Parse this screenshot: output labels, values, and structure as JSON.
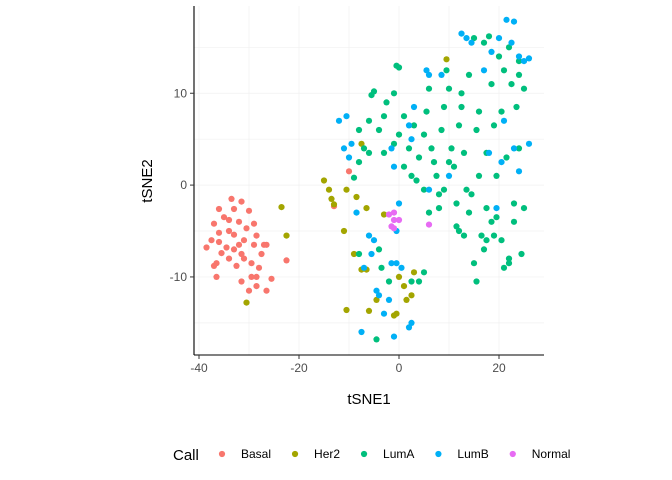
{
  "chart_data": {
    "type": "scatter",
    "title": "",
    "xlabel": "tSNE1",
    "ylabel": "tSNE2",
    "xlim": [
      -41,
      29
    ],
    "ylim": [
      -18.5,
      19.5
    ],
    "xticks": [
      -40,
      -20,
      0,
      20
    ],
    "yticks": [
      -10,
      0,
      10
    ],
    "grid": true,
    "legend": {
      "title": "Call",
      "placement": "bottom",
      "entries": [
        "Basal",
        "Her2",
        "LumA",
        "LumB",
        "Normal"
      ]
    },
    "colors": {
      "Basal": "#F8766D",
      "Her2": "#A3A500",
      "LumA": "#00BF7D",
      "LumB": "#00B0F6",
      "Normal": "#E76BF3"
    },
    "series": [
      {
        "name": "Basal",
        "points": [
          [
            -33.5,
            -1.5
          ],
          [
            -31.5,
            -1.8
          ],
          [
            -36,
            -2.6
          ],
          [
            -33,
            -2.6
          ],
          [
            -30,
            -2.8
          ],
          [
            -35,
            -3.5
          ],
          [
            -34,
            -3.8
          ],
          [
            -32,
            -4.0
          ],
          [
            -29,
            -4.2
          ],
          [
            -37,
            -4.2
          ],
          [
            -30.5,
            -4.7
          ],
          [
            -36,
            -5.2
          ],
          [
            -34,
            -5.0
          ],
          [
            -33,
            -5.4
          ],
          [
            -28.5,
            -5.5
          ],
          [
            -31,
            -6.0
          ],
          [
            -37.5,
            -6.0
          ],
          [
            -36,
            -6.2
          ],
          [
            -32,
            -6.5
          ],
          [
            -29,
            -6.5
          ],
          [
            -27,
            -6.5
          ],
          [
            -26.5,
            -6.5
          ],
          [
            -38.5,
            -6.8
          ],
          [
            -34.5,
            -6.8
          ],
          [
            -33,
            -7.0
          ],
          [
            -35.5,
            -7.4
          ],
          [
            -31.5,
            -7.5
          ],
          [
            -27.5,
            -7.5
          ],
          [
            -34,
            -8.0
          ],
          [
            -31,
            -8.0
          ],
          [
            -22.5,
            -8.2
          ],
          [
            -36.5,
            -8.5
          ],
          [
            -32.5,
            -8.8
          ],
          [
            -29.5,
            -8.5
          ],
          [
            -37,
            -8.8
          ],
          [
            -28,
            -9.0
          ],
          [
            -29.5,
            -10.0
          ],
          [
            -28.5,
            -10.0
          ],
          [
            -36.5,
            -10.0
          ],
          [
            -25.5,
            -10.2
          ],
          [
            -31.5,
            -10.5
          ],
          [
            -28.5,
            -11.0
          ],
          [
            -30,
            -11.5
          ],
          [
            -26.5,
            -11.5
          ],
          [
            -13,
            -2.3
          ],
          [
            -10,
            1.5
          ]
        ]
      },
      {
        "name": "Her2",
        "points": [
          [
            -23.5,
            -2.4
          ],
          [
            -22.5,
            -5.5
          ],
          [
            -30.5,
            -12.8
          ],
          [
            -15,
            0.5
          ],
          [
            -14,
            -0.5
          ],
          [
            -13.5,
            -1.5
          ],
          [
            -13,
            -2.1
          ],
          [
            -10.5,
            -0.5
          ],
          [
            -8.5,
            -1.3
          ],
          [
            -11,
            -5.0
          ],
          [
            -9,
            -7.5
          ],
          [
            -7.5,
            -9.2
          ],
          [
            -6.5,
            -9.2
          ],
          [
            -3,
            -3.2
          ],
          [
            -7.5,
            4.5
          ],
          [
            -6.5,
            -2.5
          ],
          [
            9.5,
            13.7
          ],
          [
            -4.5,
            -12.5
          ],
          [
            0,
            -10
          ],
          [
            1,
            -11
          ],
          [
            2.5,
            -12
          ],
          [
            1.5,
            -12.5
          ],
          [
            -1,
            -14.2
          ],
          [
            -0.5,
            -14
          ],
          [
            -6,
            -13.7
          ],
          [
            -10.5,
            -13.6
          ],
          [
            3,
            -9.5
          ]
        ]
      },
      {
        "name": "LumA",
        "points": [
          [
            -9,
            0.8
          ],
          [
            -8,
            2.5
          ],
          [
            -7,
            4.0
          ],
          [
            -6,
            3.5
          ],
          [
            -8,
            6.0
          ],
          [
            -6,
            7.0
          ],
          [
            -5.5,
            9.8
          ],
          [
            -5,
            10.2
          ],
          [
            -4,
            6.0
          ],
          [
            -3,
            3.5
          ],
          [
            -3,
            7.5
          ],
          [
            -2.5,
            9.0
          ],
          [
            -1,
            10.0
          ],
          [
            -0.5,
            13.0
          ],
          [
            0,
            12.8
          ],
          [
            -1,
            4.5
          ],
          [
            0,
            5.5
          ],
          [
            1,
            7.5
          ],
          [
            1,
            2.0
          ],
          [
            2,
            4.0
          ],
          [
            3,
            6.5
          ],
          [
            2.5,
            1.0
          ],
          [
            3.5,
            0.5
          ],
          [
            4,
            3.0
          ],
          [
            5,
            5.5
          ],
          [
            5,
            -0.5
          ],
          [
            5.5,
            8.0
          ],
          [
            6,
            10.5
          ],
          [
            6.5,
            4.0
          ],
          [
            7,
            2.5
          ],
          [
            7.5,
            1.0
          ],
          [
            8,
            -1.0
          ],
          [
            8.5,
            6.0
          ],
          [
            9,
            8.5
          ],
          [
            9.5,
            12.5
          ],
          [
            10,
            10.5
          ],
          [
            10.5,
            4.0
          ],
          [
            11,
            2.0
          ],
          [
            11.5,
            -2.0
          ],
          [
            11.5,
            -4.5
          ],
          [
            12,
            6.5
          ],
          [
            12.5,
            8.5
          ],
          [
            12.5,
            10.0
          ],
          [
            13,
            3.5
          ],
          [
            13.5,
            -0.5
          ],
          [
            14,
            -3.0
          ],
          [
            14,
            12.0
          ],
          [
            15,
            16.0
          ],
          [
            15.5,
            6.0
          ],
          [
            16,
            8.0
          ],
          [
            16,
            1.0
          ],
          [
            17,
            15.5
          ],
          [
            17.5,
            3.5
          ],
          [
            17.5,
            -2.5
          ],
          [
            18,
            16.2
          ],
          [
            18.5,
            11.0
          ],
          [
            18.5,
            -4.0
          ],
          [
            19,
            6.5
          ],
          [
            19.5,
            -3.5
          ],
          [
            19.5,
            1.0
          ],
          [
            20,
            14.0
          ],
          [
            20.5,
            8.0
          ],
          [
            20.5,
            -6.0
          ],
          [
            21,
            12.5
          ],
          [
            21.5,
            3.0
          ],
          [
            22,
            -8.0
          ],
          [
            22,
            15.0
          ],
          [
            22.5,
            11.0
          ],
          [
            23,
            -4.0
          ],
          [
            23,
            -2.0
          ],
          [
            23.5,
            8.5
          ],
          [
            24,
            13.5
          ],
          [
            24,
            4.0
          ],
          [
            24.5,
            -7.5
          ],
          [
            25,
            -2.5
          ],
          [
            25,
            10.5
          ],
          [
            24,
            12.0
          ],
          [
            14.5,
            -1.0
          ],
          [
            16.5,
            -5.5
          ],
          [
            15,
            -8.5
          ],
          [
            15.5,
            -10.5
          ],
          [
            17,
            -7.0
          ],
          [
            17.5,
            -6.0
          ],
          [
            12,
            -5.0
          ],
          [
            13,
            -5.5
          ],
          [
            10,
            2.5
          ],
          [
            9,
            -0.5
          ],
          [
            8,
            -2.5
          ],
          [
            6,
            -3.0
          ],
          [
            5,
            -9.5
          ],
          [
            4,
            -10.5
          ],
          [
            2.5,
            -10.5
          ],
          [
            -3.5,
            -9.0
          ],
          [
            -4,
            -7.0
          ],
          [
            -4.5,
            -16.8
          ],
          [
            -2,
            -10.5
          ],
          [
            -8,
            -7.5
          ],
          [
            19,
            -5.5
          ],
          [
            21,
            -9.0
          ],
          [
            22,
            -8.5
          ]
        ]
      },
      {
        "name": "LumB",
        "points": [
          [
            -12,
            7.0
          ],
          [
            -10.5,
            7.5
          ],
          [
            -11,
            4.0
          ],
          [
            -10,
            3.0
          ],
          [
            -9.5,
            4.5
          ],
          [
            -8.5,
            -3.0
          ],
          [
            -6,
            -5.5
          ],
          [
            -5,
            -6.0
          ],
          [
            -5.5,
            -7.5
          ],
          [
            -7,
            -9.0
          ],
          [
            -4.5,
            -11.5
          ],
          [
            -4,
            -12.0
          ],
          [
            -3,
            -14.0
          ],
          [
            -2,
            -12.5
          ],
          [
            -1.5,
            -8.5
          ],
          [
            -0.5,
            -8.5
          ],
          [
            0.5,
            -9.0
          ],
          [
            -1,
            -16.5
          ],
          [
            2.5,
            -15.0
          ],
          [
            2,
            -15.5
          ],
          [
            -7.5,
            -16.0
          ],
          [
            3,
            8.5
          ],
          [
            2,
            6.5
          ],
          [
            5.5,
            12.5
          ],
          [
            6,
            12.0
          ],
          [
            2.5,
            5.0
          ],
          [
            6,
            -0.5
          ],
          [
            8.5,
            12.0
          ],
          [
            10,
            1.0
          ],
          [
            12.5,
            16.5
          ],
          [
            13.5,
            16.0
          ],
          [
            14.5,
            15.5
          ],
          [
            17,
            12.5
          ],
          [
            18.5,
            14.5
          ],
          [
            20,
            16.0
          ],
          [
            21.5,
            18.0
          ],
          [
            23,
            17.8
          ],
          [
            22.5,
            15.5
          ],
          [
            24,
            14.0
          ],
          [
            25,
            13.5
          ],
          [
            26,
            13.8
          ],
          [
            21,
            7.0
          ],
          [
            23,
            4.0
          ],
          [
            26,
            4.5
          ],
          [
            24,
            1.5
          ],
          [
            20.5,
            2.5
          ],
          [
            19.5,
            -2.5
          ],
          [
            18,
            3.5
          ],
          [
            -1,
            2.0
          ],
          [
            0,
            -2.0
          ],
          [
            -1.5,
            4.0
          ],
          [
            -0.5,
            -5.0
          ]
        ]
      },
      {
        "name": "Normal",
        "points": [
          [
            -1,
            -3.0
          ],
          [
            -2,
            -3.2
          ],
          [
            -1,
            -3.8
          ],
          [
            0,
            -3.8
          ],
          [
            -1.5,
            -4.5
          ],
          [
            -1,
            -4.7
          ],
          [
            6,
            -4.3
          ]
        ]
      }
    ]
  }
}
